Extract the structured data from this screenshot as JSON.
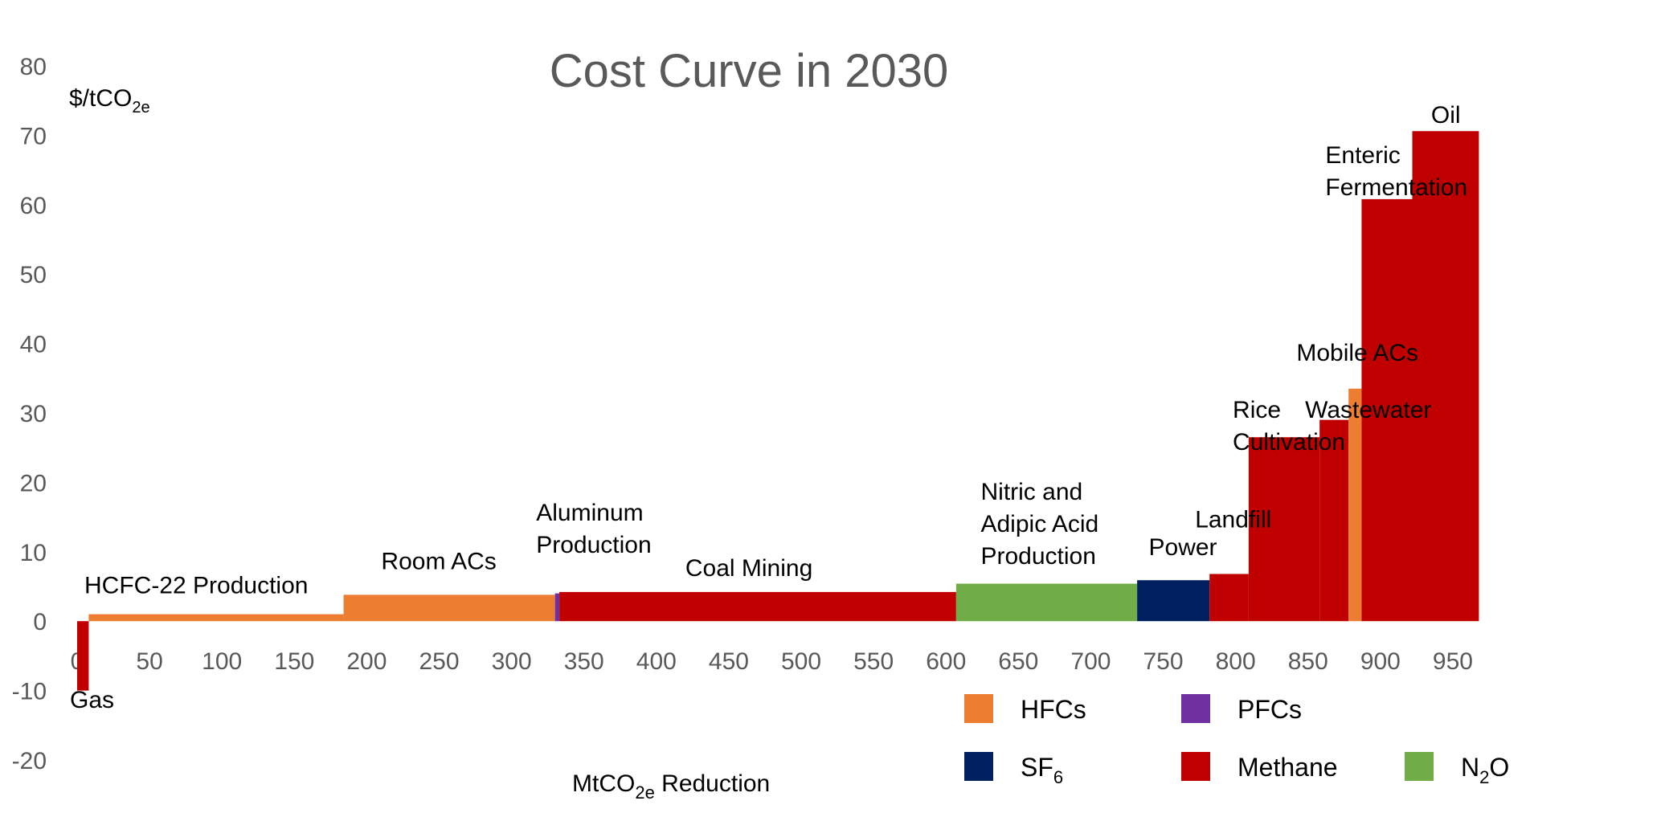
{
  "chart_data": {
    "type": "bar",
    "title": "Cost Curve in 2030",
    "ylabel": "$/tCO2e",
    "xlabel": "MtCO2e Reduction",
    "xlim": [
      0,
      970
    ],
    "ylim": [
      -20,
      80
    ],
    "x_ticks": [
      0,
      50,
      100,
      150,
      200,
      250,
      300,
      350,
      400,
      450,
      500,
      550,
      600,
      650,
      700,
      750,
      800,
      850,
      900,
      950
    ],
    "y_ticks": [
      80,
      70,
      60,
      50,
      40,
      30,
      20,
      10,
      0,
      -10,
      -20
    ],
    "series_colors": {
      "HFCs": "#ED7D31",
      "PFCs": "#7030A0",
      "SF6": "#002060",
      "Methane": "#C00000",
      "N2O": "#70AD47"
    },
    "legend": [
      {
        "key": "HFCs",
        "label": "HFCs"
      },
      {
        "key": "PFCs",
        "label": "PFCs"
      },
      {
        "key": "SF6",
        "label": "SF",
        "sub": "6"
      },
      {
        "key": "Methane",
        "label": "Methane"
      },
      {
        "key": "N2O",
        "label": "N",
        "sub": "2",
        "after": "O"
      }
    ],
    "bars": [
      {
        "label": "Gas",
        "series": "Methane",
        "x0": 0,
        "x1": 8,
        "value": -10
      },
      {
        "label": "HCFC-22 Production",
        "series": "HFCs",
        "x0": 8,
        "x1": 184,
        "value": 1
      },
      {
        "label": "Room ACs",
        "series": "HFCs",
        "x0": 184,
        "x1": 330,
        "value": 3.8
      },
      {
        "label": "",
        "series": "PFCs",
        "x0": 330,
        "x1": 333,
        "value": 4
      },
      {
        "label": "Aluminum Production",
        "series": "Methane",
        "x0": 333,
        "x1": 607,
        "value": 4.2
      },
      {
        "label": "Coal Mining",
        "series": "Methane",
        "x0": 333,
        "x1": 607,
        "value": 4.2
      },
      {
        "label": "Nitric and Adipic Acid Production",
        "series": "N2O",
        "x0": 607,
        "x1": 732,
        "value": 5.4
      },
      {
        "label": "Power",
        "series": "SF6",
        "x0": 732,
        "x1": 782,
        "value": 5.9
      },
      {
        "label": "Landfill",
        "series": "Methane",
        "x0": 782,
        "x1": 809,
        "value": 6.8
      },
      {
        "label": "Rice Cultivation",
        "series": "Methane",
        "x0": 809,
        "x1": 858,
        "value": 26.5
      },
      {
        "label": "Wastewater",
        "series": "Methane",
        "x0": 858,
        "x1": 878,
        "value": 29
      },
      {
        "label": "Mobile ACs",
        "series": "HFCs",
        "x0": 878,
        "x1": 887,
        "value": 33.5
      },
      {
        "label": "Enteric Fermentation",
        "series": "Methane",
        "x0": 887,
        "x1": 922,
        "value": 60.8
      },
      {
        "label": "Oil",
        "series": "Methane",
        "x0": 922,
        "x1": 968,
        "value": 70.6
      }
    ],
    "annotations": [
      {
        "lines": [
          "Gas"
        ],
        "x": -5,
        "y": -12.5,
        "anchor": "start"
      },
      {
        "lines": [
          "HCFC-22 Production"
        ],
        "x": 5,
        "y": 4,
        "anchor": "start"
      },
      {
        "lines": [
          "Room ACs"
        ],
        "x": 210,
        "y": 7.5,
        "anchor": "start"
      },
      {
        "lines": [
          "Aluminum",
          "Production"
        ],
        "x": 317,
        "y": 14.5,
        "anchor": "start"
      },
      {
        "lines": [
          "Coal Mining"
        ],
        "x": 420,
        "y": 6.5,
        "anchor": "start"
      },
      {
        "lines": [
          "Nitric and",
          "Adipic Acid",
          "Production"
        ],
        "x": 624,
        "y": 17.5,
        "anchor": "start"
      },
      {
        "lines": [
          "Power"
        ],
        "x": 740,
        "y": 9.5,
        "anchor": "start"
      },
      {
        "lines": [
          "Landfill"
        ],
        "x": 772,
        "y": 13.5,
        "anchor": "start"
      },
      {
        "lines": [
          "Rice",
          "Cultivation"
        ],
        "x": 798,
        "y": 29.3,
        "anchor": "start"
      },
      {
        "lines": [
          "Wastewater"
        ],
        "x": 848,
        "y": 29.3,
        "anchor": "start"
      },
      {
        "lines": [
          "Mobile ACs"
        ],
        "x": 842,
        "y": 37.5,
        "anchor": "start"
      },
      {
        "lines": [
          "Enteric",
          "Fermentation"
        ],
        "x": 862,
        "y": 66,
        "anchor": "start"
      },
      {
        "lines": [
          "Oil"
        ],
        "x": 935,
        "y": 71.8,
        "anchor": "start"
      }
    ]
  }
}
